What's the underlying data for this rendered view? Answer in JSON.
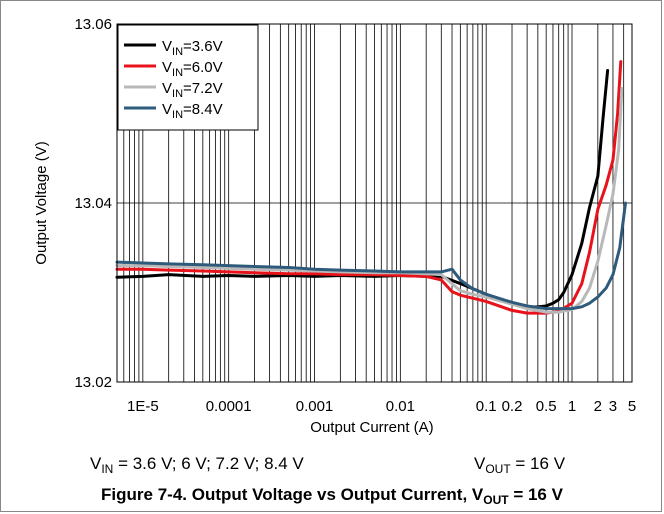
{
  "chart_data": {
    "type": "line",
    "xlabel": "Output Current (A)",
    "ylabel": "Output Voltage (V)",
    "x_scale": "log",
    "xlim": [
      5e-06,
      5
    ],
    "ylim": [
      13.02,
      13.06
    ],
    "grid": true,
    "legend_position": "top-left",
    "x_tick_labels": [
      {
        "value": 1e-05,
        "label": "1E-5"
      },
      {
        "value": 0.0001,
        "label": "0.0001"
      },
      {
        "value": 0.001,
        "label": "0.001"
      },
      {
        "value": 0.01,
        "label": "0.01"
      },
      {
        "value": 0.1,
        "label": "0.1"
      },
      {
        "value": 0.2,
        "label": "0.2"
      },
      {
        "value": 0.5,
        "label": "0.5"
      },
      {
        "value": 1,
        "label": "1"
      },
      {
        "value": 2,
        "label": "2"
      },
      {
        "value": 3,
        "label": "3"
      },
      {
        "value": 5,
        "label": "5"
      }
    ],
    "y_tick_labels": [
      {
        "value": 13.02,
        "label": "13.02"
      },
      {
        "value": 13.04,
        "label": "13.04"
      },
      {
        "value": 13.06,
        "label": "13.06"
      }
    ],
    "series": [
      {
        "label_main": "V",
        "label_sub": "IN",
        "label_rest": "=3.6V",
        "color": "#000000",
        "x": [
          5e-06,
          1e-05,
          2e-05,
          5e-05,
          0.0001,
          0.0002,
          0.0005,
          0.001,
          0.002,
          0.005,
          0.01,
          0.02,
          0.03,
          0.05,
          0.1,
          0.2,
          0.3,
          0.4,
          0.5,
          0.6,
          0.7,
          0.8,
          1.0,
          1.3,
          1.6,
          2.0,
          2.3,
          2.6
        ],
        "y": [
          13.0317,
          13.0318,
          13.032,
          13.0318,
          13.0319,
          13.0318,
          13.0319,
          13.0318,
          13.0319,
          13.0318,
          13.0319,
          13.0318,
          13.0318,
          13.031,
          13.0298,
          13.0288,
          13.0284,
          13.0284,
          13.0285,
          13.0288,
          13.0292,
          13.03,
          13.032,
          13.0355,
          13.0395,
          13.043,
          13.0495,
          13.0548
        ]
      },
      {
        "label_main": "V",
        "label_sub": "IN",
        "label_rest": "=6.0V",
        "color": "#e8121b",
        "x": [
          5e-06,
          1e-05,
          2e-05,
          5e-05,
          0.0001,
          0.0002,
          0.0005,
          0.001,
          0.002,
          0.005,
          0.01,
          0.02,
          0.03,
          0.04,
          0.05,
          0.1,
          0.2,
          0.3,
          0.5,
          0.7,
          1.0,
          1.3,
          1.6,
          2.0,
          2.5,
          3.0,
          3.4,
          3.7
        ],
        "y": [
          13.0326,
          13.0326,
          13.0325,
          13.0324,
          13.0323,
          13.0322,
          13.0321,
          13.0321,
          13.032,
          13.032,
          13.0319,
          13.0318,
          13.0314,
          13.0301,
          13.0297,
          13.029,
          13.028,
          13.0277,
          13.0277,
          13.0279,
          13.0288,
          13.031,
          13.0345,
          13.0393,
          13.042,
          13.0448,
          13.05,
          13.0558
        ]
      },
      {
        "label_main": "V",
        "label_sub": "IN",
        "label_rest": "=7.2V",
        "color": "#b8b8b8",
        "x": [
          5e-06,
          1e-05,
          2e-05,
          5e-05,
          0.0001,
          0.0002,
          0.0005,
          0.001,
          0.002,
          0.005,
          0.01,
          0.02,
          0.03,
          0.05,
          0.07,
          0.1,
          0.2,
          0.3,
          0.5,
          0.7,
          1.0,
          1.3,
          1.6,
          2.0,
          2.5,
          3.0,
          3.5,
          3.8
        ],
        "y": [
          13.033,
          13.033,
          13.0329,
          13.0328,
          13.0327,
          13.0326,
          13.0325,
          13.0324,
          13.0323,
          13.0322,
          13.0322,
          13.0321,
          13.032,
          13.0302,
          13.0298,
          13.0295,
          13.0287,
          13.0282,
          13.0278,
          13.0278,
          13.0281,
          13.029,
          13.0305,
          13.0335,
          13.0375,
          13.041,
          13.046,
          13.0528
        ]
      },
      {
        "label_main": "V",
        "label_sub": "IN",
        "label_rest": "=8.4V",
        "color": "#2e5b7c",
        "x": [
          5e-06,
          1e-05,
          2e-05,
          5e-05,
          0.0001,
          0.0002,
          0.0005,
          0.001,
          0.002,
          0.005,
          0.01,
          0.02,
          0.03,
          0.04,
          0.05,
          0.07,
          0.1,
          0.2,
          0.3,
          0.5,
          0.7,
          1.0,
          1.3,
          1.6,
          2.0,
          2.5,
          3.0,
          3.6,
          4.2
        ],
        "y": [
          13.0334,
          13.0333,
          13.0332,
          13.0331,
          13.033,
          13.0329,
          13.0328,
          13.0326,
          13.0325,
          13.0324,
          13.0323,
          13.0323,
          13.0323,
          13.0326,
          13.0314,
          13.0304,
          13.0298,
          13.0289,
          13.0285,
          13.0282,
          13.0282,
          13.0282,
          13.0284,
          13.0288,
          13.0295,
          13.0305,
          13.032,
          13.035,
          13.04
        ]
      }
    ]
  },
  "conditions": {
    "vin_main": "V",
    "vin_sub": "IN",
    "vin_rest": " = 3.6 V; 6 V; 7.2 V; 8.4 V",
    "vout_main": "V",
    "vout_sub": "OUT",
    "vout_rest": " = 16 V"
  },
  "caption": {
    "prefix": "Figure 7-4. Output Voltage vs Output Current, V",
    "sub": "OUT",
    "suffix": " = 16 V"
  }
}
